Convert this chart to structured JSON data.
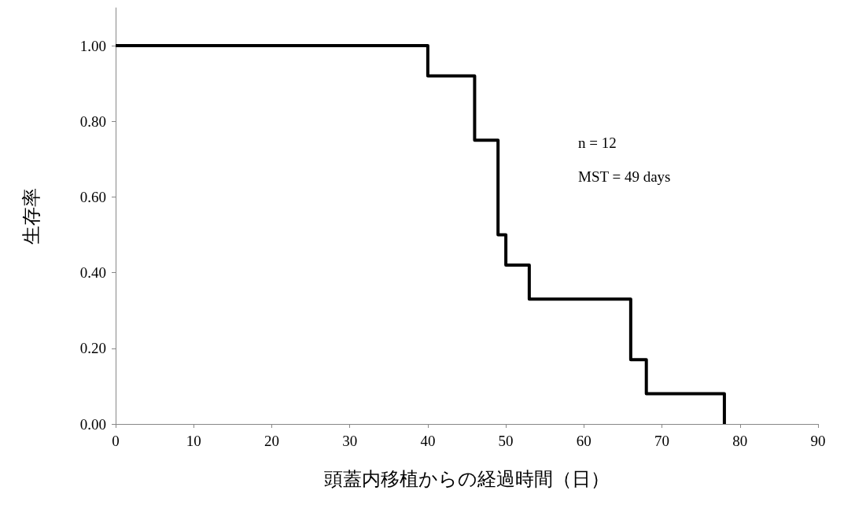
{
  "chart_data": {
    "type": "step",
    "xlabel": "頭蓋内移植からの経過時間（日）",
    "ylabel": "生存率",
    "x": [
      0,
      40,
      46,
      49,
      50,
      53,
      66,
      68,
      78
    ],
    "series": [
      {
        "color": "#000000",
        "values": [
          1,
          0.92,
          0.75,
          0.5,
          0.42,
          0.33,
          0.17,
          0.08,
          0
        ]
      }
    ],
    "xlim": [
      0,
      90
    ],
    "xticks": [
      0,
      10,
      20,
      30,
      40,
      50,
      60,
      70,
      80,
      90
    ],
    "ylim": [
      0,
      1.1
    ],
    "yticks": [
      {
        "value": 0,
        "label": "0.00"
      },
      {
        "value": 0.2,
        "label": "0.20"
      },
      {
        "value": 0.4,
        "label": "0.40"
      },
      {
        "value": 0.6,
        "label": "0.60"
      },
      {
        "value": 0.8,
        "label": "0.80"
      },
      {
        "value": 1,
        "label": "1.00"
      }
    ],
    "annotations": [
      "n = 12",
      "MST = 49 days"
    ],
    "grid": false,
    "marker": "none",
    "line_style": "solid"
  }
}
